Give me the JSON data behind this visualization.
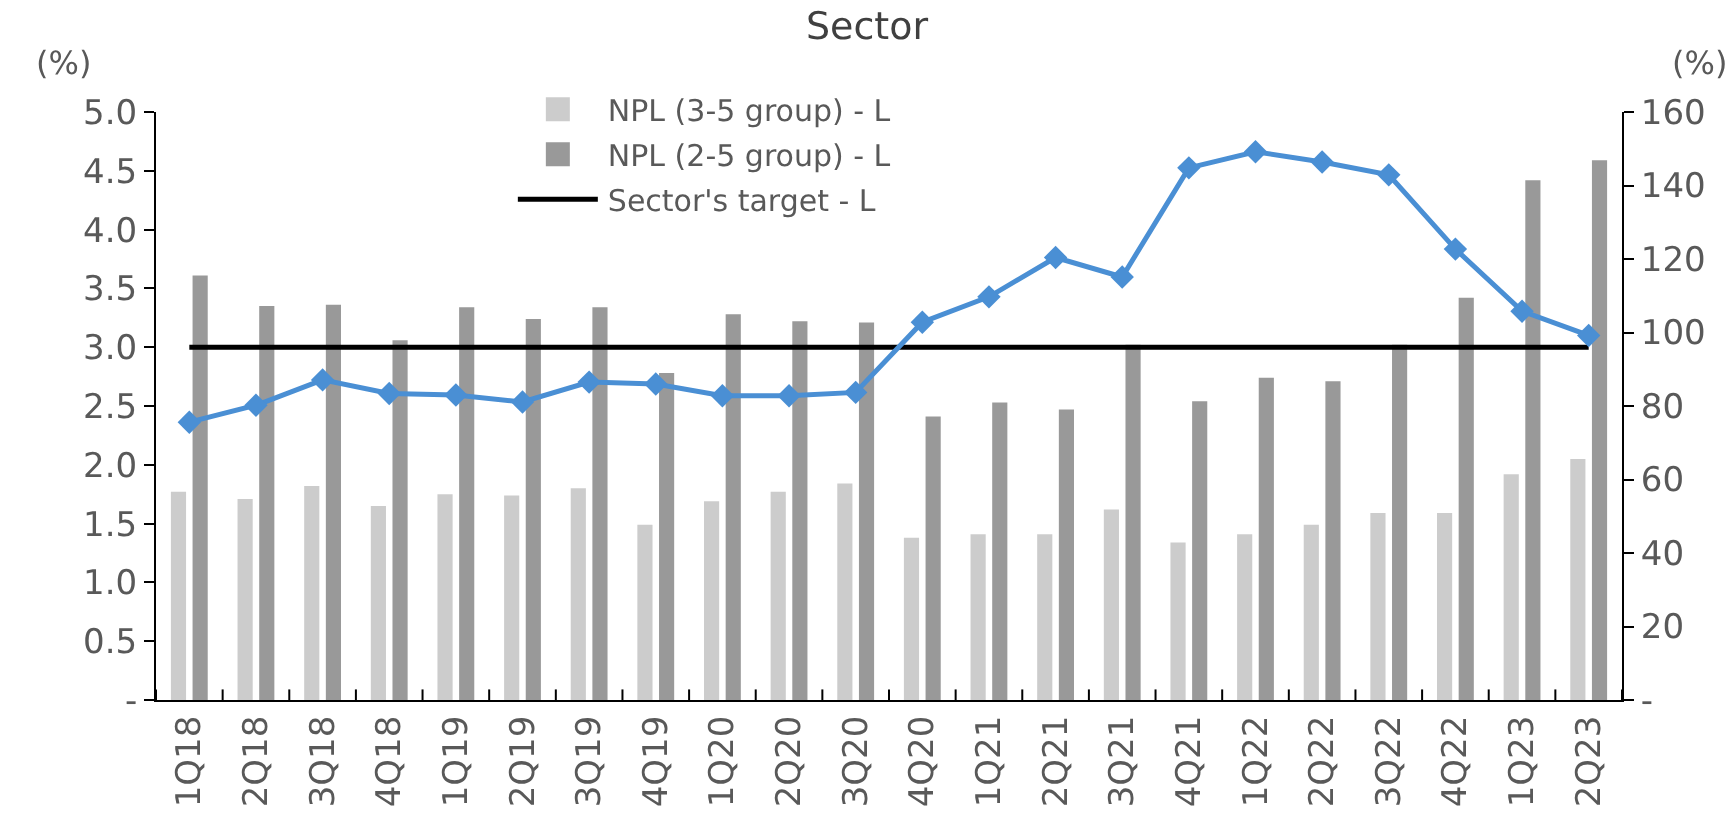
{
  "chart_data": {
    "type": "bar",
    "title": "Sector",
    "ylabel": "(%)",
    "y2label": "(%)",
    "categories": [
      "1Q18",
      "2Q18",
      "3Q18",
      "4Q18",
      "1Q19",
      "2Q19",
      "3Q19",
      "4Q19",
      "1Q20",
      "2Q20",
      "3Q20",
      "4Q20",
      "1Q21",
      "2Q21",
      "3Q21",
      "4Q21",
      "1Q22",
      "2Q22",
      "3Q22",
      "4Q22",
      "1Q23",
      "2Q23"
    ],
    "series": [
      {
        "name": "NPL (3-5 group) - L",
        "color": "#cccccc",
        "values": [
          1.77,
          1.71,
          1.82,
          1.65,
          1.75,
          1.74,
          1.8,
          1.49,
          1.69,
          1.77,
          1.84,
          1.38,
          1.41,
          1.41,
          1.62,
          1.34,
          1.41,
          1.49,
          1.59,
          1.59,
          1.92,
          2.05
        ]
      },
      {
        "name": "NPL (2-5 group) - L",
        "color": "#999999",
        "values": [
          3.61,
          3.35,
          3.36,
          3.06,
          3.34,
          3.24,
          3.34,
          2.78,
          3.28,
          3.22,
          3.21,
          2.41,
          2.53,
          2.47,
          3.02,
          2.54,
          2.74,
          2.71,
          3.02,
          3.42,
          4.42,
          4.59
        ]
      },
      {
        "name": "Sector's target - L",
        "type": "line",
        "color": "#000000",
        "marker": "none",
        "values": [
          3.0,
          3.0,
          3.0,
          3.0,
          3.0,
          3.0,
          3.0,
          3.0,
          3.0,
          3.0,
          3.0,
          3.0,
          3.0,
          3.0,
          3.0,
          3.0,
          3.0,
          3.0,
          3.0,
          3.0,
          3.0,
          3.0
        ]
      },
      {
        "type": "line",
        "axis": "y2",
        "color": "#4a8fd4",
        "marker": "diamond",
        "values": [
          75.6,
          80.2,
          87.1,
          83.4,
          83.0,
          81.1,
          86.5,
          86.0,
          82.8,
          82.8,
          83.7,
          102.8,
          109.7,
          120.4,
          115.1,
          144.8,
          149.2,
          146.4,
          142.9,
          122.7,
          105.8,
          99.2
        ]
      }
    ],
    "ylim": [
      0,
      5.0
    ],
    "yticks": [
      {
        "value": 0,
        "label": "-"
      },
      {
        "value": 0.5,
        "label": "0.5"
      },
      {
        "value": 1.0,
        "label": "1.0"
      },
      {
        "value": 1.5,
        "label": "1.5"
      },
      {
        "value": 2.0,
        "label": "2.0"
      },
      {
        "value": 2.5,
        "label": "2.5"
      },
      {
        "value": 3.0,
        "label": "3.0"
      },
      {
        "value": 3.5,
        "label": "3.5"
      },
      {
        "value": 4.0,
        "label": "4.0"
      },
      {
        "value": 4.5,
        "label": "4.5"
      },
      {
        "value": 5.0,
        "label": "5.0"
      }
    ],
    "y2lim": [
      0,
      160
    ],
    "y2ticks": [
      {
        "value": 0,
        "label": "-"
      },
      20,
      40,
      60,
      80,
      100,
      120,
      140,
      160
    ],
    "legend": "top"
  }
}
